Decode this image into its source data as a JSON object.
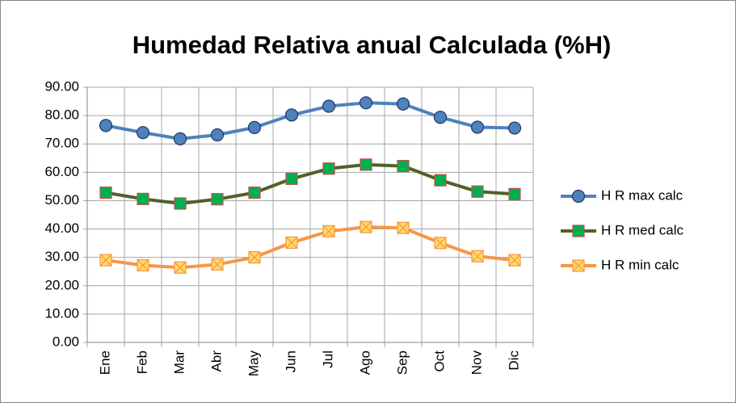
{
  "chart_data": {
    "type": "line",
    "title": "Humedad Relativa anual Calculada  (%H)",
    "categories": [
      "Ene",
      "Feb",
      "Mar",
      "Abr",
      "May",
      "Jun",
      "Jul",
      "Ago",
      "Sep",
      "Oct",
      "Nov",
      "Dic"
    ],
    "series": [
      {
        "name": "H R max calc",
        "color": "#4f81bd",
        "marker": "circle",
        "marker_fill": "#4f81bd",
        "marker_edge": "#1f3864",
        "values": [
          76.5,
          74,
          71.8,
          73.2,
          75.8,
          80.2,
          83.3,
          84.5,
          84.1,
          79.4,
          75.9,
          75.6
        ]
      },
      {
        "name": "H R med calc",
        "color": "#4f6228",
        "marker": "square",
        "marker_fill": "#00b050",
        "marker_edge": "#c0504d",
        "values": [
          52.8,
          50.6,
          49,
          50.5,
          52.8,
          57.7,
          61.3,
          62.7,
          62.2,
          57.2,
          53.2,
          52.3
        ]
      },
      {
        "name": "H R min calc",
        "color": "#f79646",
        "marker": "xsquare",
        "marker_fill": "#ffd966",
        "marker_edge": "#f79646",
        "values": [
          29,
          27.2,
          26.4,
          27.5,
          30,
          35.2,
          39.2,
          40.7,
          40.4,
          35.1,
          30.4,
          29
        ]
      }
    ],
    "ylim": [
      0,
      90
    ],
    "yticks": [
      {
        "value": 0,
        "label": "0.00"
      },
      {
        "value": 10,
        "label": "10.00"
      },
      {
        "value": 20,
        "label": "20.00"
      },
      {
        "value": 30,
        "label": "30.00"
      },
      {
        "value": 40,
        "label": "40.00"
      },
      {
        "value": 50,
        "label": "50.00"
      },
      {
        "value": 60,
        "label": "60.00"
      },
      {
        "value": 70,
        "label": "70.00"
      },
      {
        "value": 80,
        "label": "80.00"
      },
      {
        "value": 90,
        "label": "90.00"
      }
    ],
    "grid": true,
    "legend": "right"
  }
}
